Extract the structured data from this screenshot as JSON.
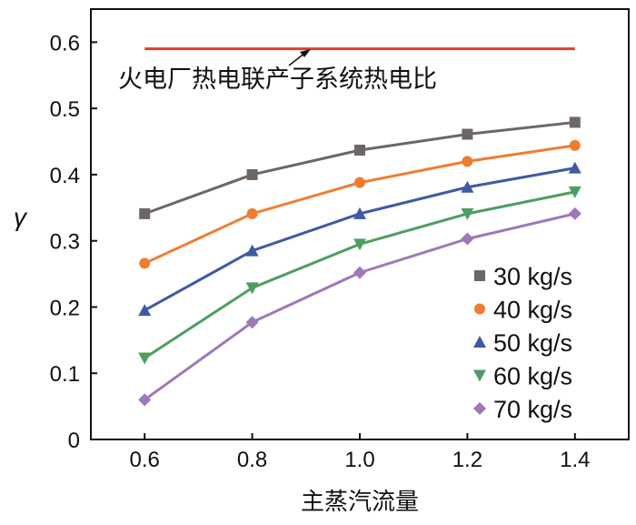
{
  "chart_data": {
    "type": "line",
    "title": "",
    "xlabel": "主蒸汽流量",
    "ylabel": "γ",
    "xlim": [
      0.5,
      1.5
    ],
    "ylim": [
      0,
      0.65
    ],
    "x": [
      0.6,
      0.8,
      1.0,
      1.2,
      1.4
    ],
    "xticks": [
      "0.6",
      "0.8",
      "1.0",
      "1.2",
      "1.4"
    ],
    "yticks": [
      "0",
      "0.1",
      "0.2",
      "0.3",
      "0.4",
      "0.5",
      "0.6"
    ],
    "grid": false,
    "legend_position": "bottom-right",
    "series": [
      {
        "name": "30 kg/s",
        "marker": "square",
        "color": "#6e6566",
        "values": [
          0.341,
          0.4,
          0.437,
          0.461,
          0.479
        ]
      },
      {
        "name": "40 kg/s",
        "marker": "circle",
        "color": "#ef7d31",
        "values": [
          0.266,
          0.341,
          0.388,
          0.42,
          0.444
        ]
      },
      {
        "name": "50 kg/s",
        "marker": "triangle-up",
        "color": "#3f5aa2",
        "values": [
          0.195,
          0.285,
          0.341,
          0.381,
          0.41
        ]
      },
      {
        "name": "60 kg/s",
        "marker": "triangle-down",
        "color": "#4e9e62",
        "values": [
          0.123,
          0.229,
          0.295,
          0.341,
          0.374
        ]
      },
      {
        "name": "70 kg/s",
        "marker": "diamond",
        "color": "#9e78b8",
        "values": [
          0.06,
          0.177,
          0.252,
          0.303,
          0.341
        ]
      }
    ],
    "reference_line": {
      "value": 0.59,
      "x_range": [
        0.6,
        1.4
      ],
      "color": "#e0402e"
    },
    "annotation": "火电厂热电联产子系统热电比"
  }
}
